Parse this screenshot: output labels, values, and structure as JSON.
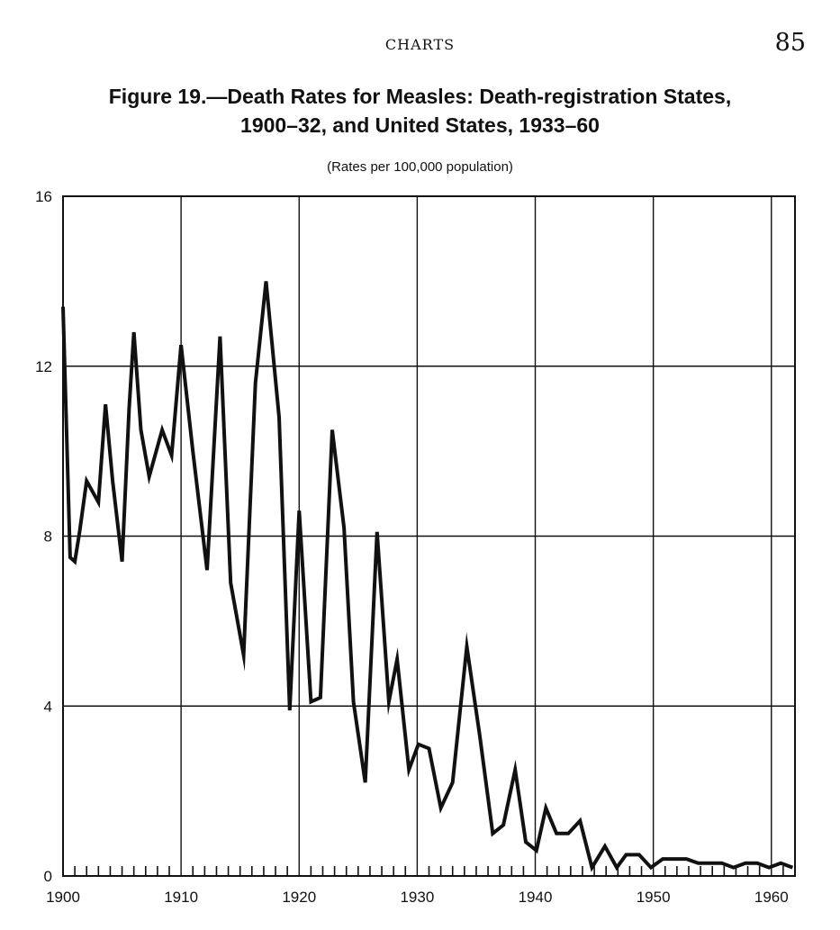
{
  "page": {
    "header": "CHARTS",
    "page_number": "85"
  },
  "chart_data": {
    "type": "line",
    "title_line1": "Figure 19.—Death Rates for Measles: Death-registration States,",
    "title_line2": "1900–32, and United States, 1933–60",
    "subtitle": "(Rates per 100,000 population)",
    "xlabel": "",
    "ylabel": "",
    "xlim": [
      1900,
      1962
    ],
    "ylim": [
      0,
      16
    ],
    "x_ticks": [
      1900,
      1910,
      1920,
      1930,
      1940,
      1950,
      1960
    ],
    "y_ticks": [
      0,
      4,
      8,
      12,
      16
    ],
    "grid": true,
    "series": [
      {
        "x": [
          1900,
          1900.6,
          1901,
          1901.4,
          1902,
          1903,
          1903.6,
          1904.2,
          1905,
          1905.6,
          1906,
          1906.6,
          1907.3,
          1908.4,
          1909.2,
          1910,
          1911,
          1912.2,
          1913.3,
          1914.2,
          1915.3,
          1916.3,
          1917.2,
          1918.3,
          1919.2,
          1920,
          1921,
          1921.8,
          1922.8,
          1923.8,
          1924.6,
          1925.6,
          1926.6,
          1927.6,
          1928.3,
          1929.3,
          1930.1,
          1931,
          1932,
          1933,
          1934.2,
          1935.3,
          1936.4,
          1937.3,
          1938.3,
          1939.2,
          1940.1,
          1940.9,
          1941.8,
          1942.8,
          1943.8,
          1944.8,
          1945.9,
          1946.9,
          1947.7,
          1948.8,
          1949.8,
          1950.8,
          1951.8,
          1952.8,
          1953.8,
          1954.8,
          1955.8,
          1956.8,
          1957.8,
          1958.8,
          1959.8,
          1960.8,
          1961.8
        ],
        "values": [
          13.4,
          7.5,
          7.4,
          8.1,
          9.3,
          8.8,
          11.1,
          9.3,
          7.4,
          11.0,
          12.8,
          10.5,
          9.4,
          10.5,
          9.9,
          12.5,
          10.0,
          7.2,
          12.7,
          6.9,
          5.2,
          11.6,
          14.0,
          10.8,
          3.9,
          8.6,
          4.1,
          4.2,
          10.5,
          8.2,
          4.1,
          2.2,
          8.1,
          4.1,
          5.1,
          2.5,
          3.1,
          3.0,
          1.6,
          2.2,
          5.4,
          3.3,
          1.0,
          1.2,
          2.5,
          0.8,
          0.6,
          1.6,
          1.0,
          1.0,
          1.3,
          0.2,
          0.7,
          0.2,
          0.5,
          0.5,
          0.2,
          0.4,
          0.4,
          0.4,
          0.3,
          0.3,
          0.3,
          0.2,
          0.3,
          0.3,
          0.2,
          0.3,
          0.2
        ]
      }
    ]
  }
}
